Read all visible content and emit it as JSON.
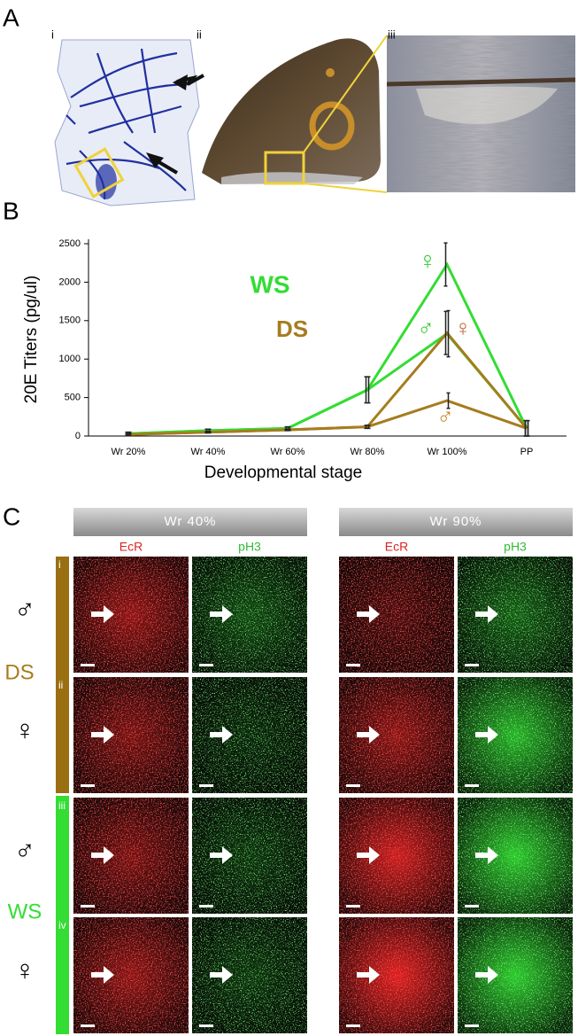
{
  "panel_labels": [
    "A",
    "B",
    "C"
  ],
  "panel_a": {
    "sublabels": [
      "i",
      "ii",
      "iii"
    ]
  },
  "chart_data": {
    "type": "line",
    "xlabel": "Developmental stage",
    "ylabel": "20E Titers (pg/ul)",
    "categories": [
      "Wr 20%",
      "Wr 40%",
      "Wr 60%",
      "Wr 80%",
      "Wr 100%",
      "PP"
    ],
    "series": [
      {
        "color": "#33dd33",
        "values": [
          30,
          70,
          100,
          600,
          2230,
          100
        ],
        "errors": [
          20,
          20,
          20,
          170,
          280,
          100
        ]
      },
      {
        "color": "#33dd33",
        "values": [
          30,
          70,
          100,
          600,
          1330,
          100
        ],
        "errors": [
          20,
          20,
          20,
          170,
          300,
          100
        ]
      },
      {
        "color": "#a67c1e",
        "values": [
          20,
          50,
          80,
          120,
          1340,
          100
        ],
        "errors": [
          10,
          10,
          10,
          20,
          280,
          100
        ]
      },
      {
        "color": "#a67c1e",
        "values": [
          20,
          50,
          80,
          120,
          460,
          100
        ],
        "errors": [
          10,
          10,
          10,
          20,
          100,
          100
        ]
      }
    ],
    "ylim": [
      0,
      2500
    ],
    "yticks": [
      0,
      500,
      1000,
      1500,
      2000,
      2500
    ],
    "annotations": [
      {
        "text": "WS",
        "color": "#33dd33"
      },
      {
        "text": "DS",
        "color": "#a67c1e"
      },
      {
        "text": "♀",
        "color": "#33cc33"
      },
      {
        "text": "♂",
        "color": "#33cc33"
      },
      {
        "text": "♀",
        "color": "#c0603a"
      },
      {
        "text": "♂",
        "color": "#c8862a"
      }
    ]
  },
  "panel_c": {
    "headers": [
      "Wr 40%",
      "Wr 90%"
    ],
    "channels": [
      "EcR",
      "pH3",
      "EcR",
      "pH3"
    ],
    "groups": [
      "DS",
      "WS"
    ],
    "rows": [
      "i",
      "ii",
      "iii",
      "iv"
    ],
    "sexes": [
      "♂",
      "♀",
      "♂",
      "♀"
    ]
  }
}
